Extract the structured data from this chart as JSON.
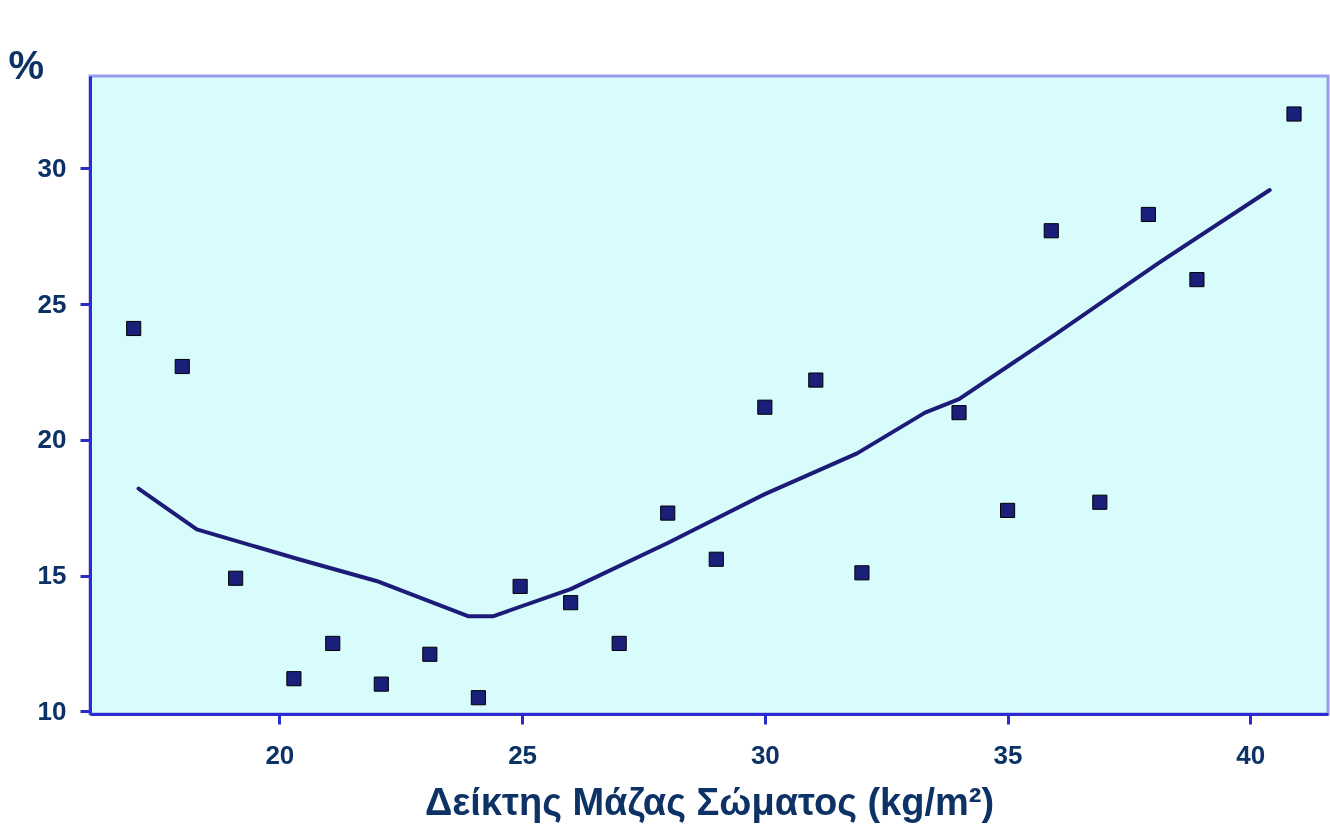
{
  "chart_data": {
    "type": "scatter",
    "xlabel": "Δείκτης Μάζας Σώματος (kg/m²)",
    "ylabel": "%",
    "xlim": [
      16.1,
      41.6
    ],
    "ylim": [
      9.9,
      33.4
    ],
    "xticks": [
      20,
      25,
      30,
      35,
      40
    ],
    "yticks": [
      10,
      15,
      20,
      25,
      30
    ],
    "grid": false,
    "marker": "square",
    "series": [
      {
        "color": "#1a1f7a",
        "x": [
          17.0,
          18.0,
          19.1,
          20.3,
          21.1,
          22.1,
          23.1,
          24.1,
          24.96,
          26.0,
          27.0,
          28.0,
          29.0,
          30.0,
          31.05,
          32.0,
          34.0,
          35.0,
          35.9,
          36.9,
          37.9,
          38.9,
          40.9
        ],
        "values": [
          24.1,
          22.7,
          14.9,
          11.2,
          12.5,
          11.0,
          12.1,
          10.5,
          14.6,
          14.0,
          12.5,
          17.3,
          15.6,
          21.2,
          22.2,
          15.1,
          21.0,
          17.4,
          27.7,
          17.7,
          28.3,
          25.9,
          32.0
        ]
      },
      {
        "type": "line",
        "color": "#1c1c78",
        "marker": "none",
        "line_style": "solid",
        "x": [
          17.1,
          18.3,
          20.4,
          22.0,
          23.9,
          24.4,
          26.0,
          28.0,
          30.0,
          31.9,
          33.3,
          34.0,
          36.0,
          38.1,
          40.4
        ],
        "values": [
          18.2,
          16.7,
          15.6,
          14.8,
          13.5,
          13.5,
          14.5,
          16.2,
          18.0,
          19.5,
          21.0,
          21.5,
          23.9,
          26.5,
          29.2
        ]
      }
    ]
  }
}
